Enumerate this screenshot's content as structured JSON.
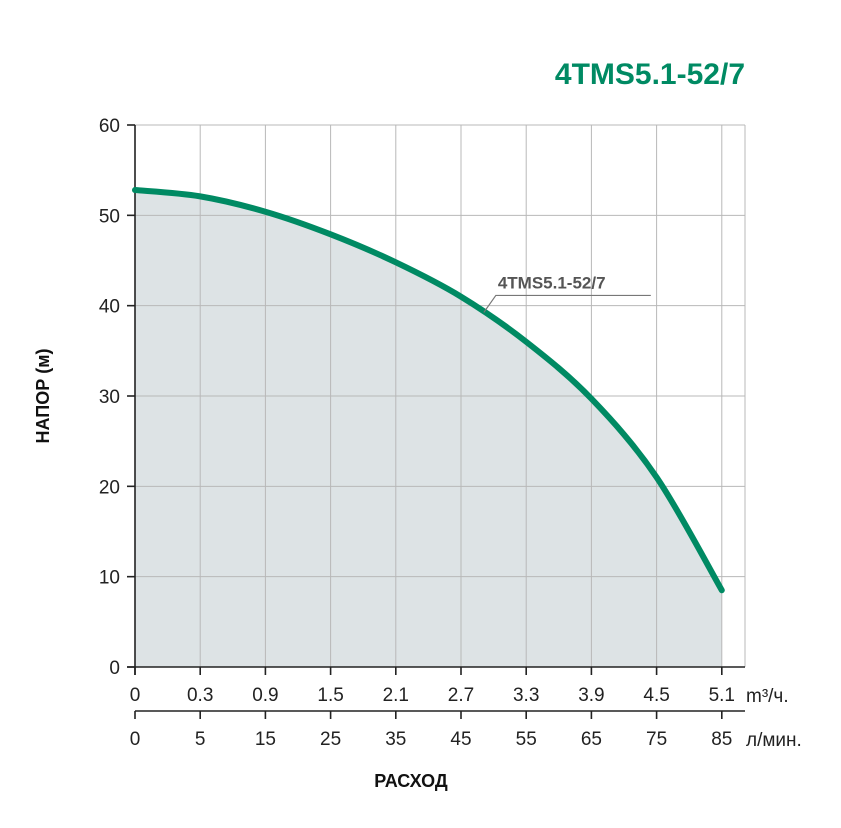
{
  "chart_data": {
    "type": "area",
    "title": "4TMS5.1-52/7",
    "ylabel": "НАПОР (м)",
    "xlabel": "РАСХОД",
    "ylim": [
      0,
      60
    ],
    "y_ticks": [
      0,
      10,
      20,
      30,
      40,
      50,
      60
    ],
    "x_ticks_primary": [
      "0",
      "0.3",
      "0.9",
      "1.5",
      "2.1",
      "2.7",
      "3.3",
      "3.9",
      "4.5",
      "5.1"
    ],
    "x_unit_primary": "m³/ч.",
    "x_ticks_secondary": [
      "0",
      "5",
      "15",
      "25",
      "35",
      "45",
      "55",
      "65",
      "75",
      "85"
    ],
    "x_unit_secondary": "л/мин.",
    "xlim_lpm": [
      0,
      85
    ],
    "grid": true,
    "series": [
      {
        "name": "4TMS5.1-52/7",
        "x_lpm": [
          0,
          5,
          15,
          25,
          35,
          45,
          55,
          65,
          75,
          85
        ],
        "y": [
          52.8,
          52.1,
          50.4,
          47.9,
          44.8,
          41.0,
          36.0,
          29.7,
          21.0,
          8.5
        ]
      }
    ],
    "colors": {
      "curve": "#008a63",
      "fill": "#dde3e5",
      "grid": "#b8b8b8",
      "title": "#008a63"
    },
    "callout_series_index": 0,
    "callout_at_lpm": 48.5
  }
}
